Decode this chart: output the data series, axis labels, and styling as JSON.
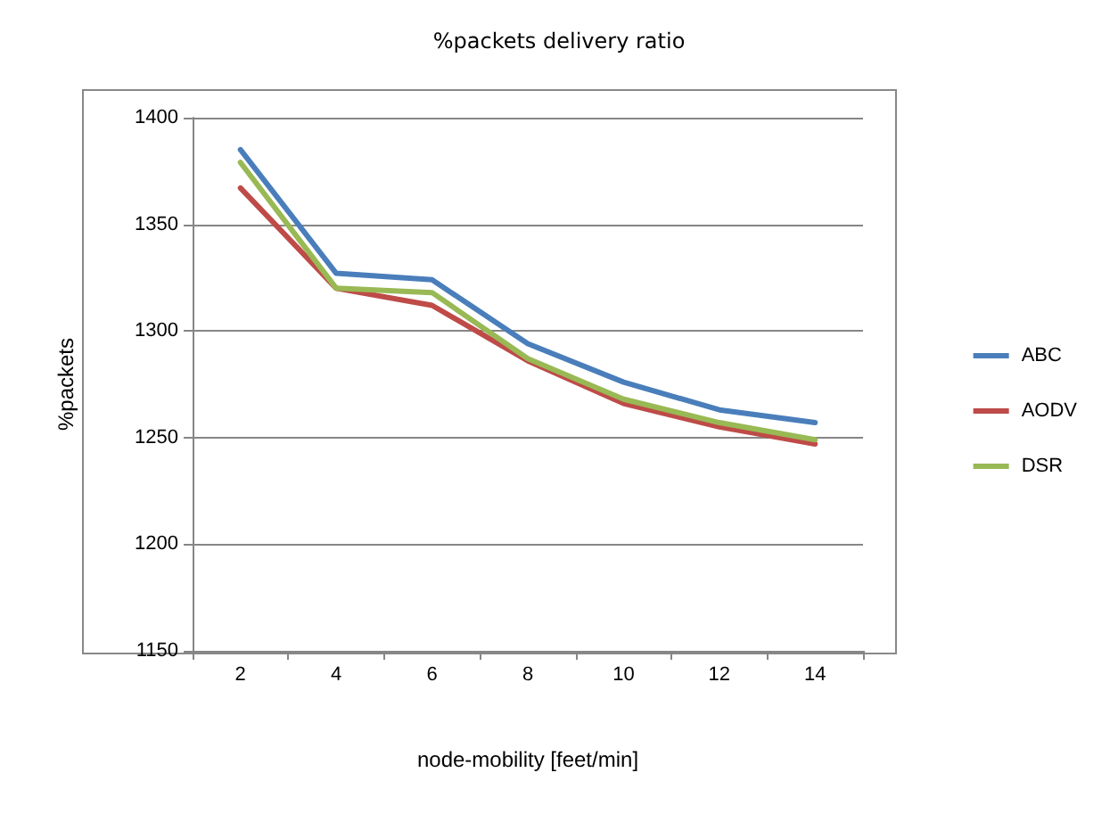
{
  "chart_data": {
    "type": "line",
    "title": "%packets delivery ratio",
    "xlabel": "node-mobility [feet/min]",
    "ylabel": "%packets",
    "categories": [
      "2",
      "4",
      "6",
      "8",
      "10",
      "12",
      "14"
    ],
    "series": [
      {
        "name": "ABC",
        "color": "#4a7ebb",
        "values": [
          1385,
          1327,
          1324,
          1294,
          1276,
          1263,
          1257
        ]
      },
      {
        "name": "AODV",
        "color": "#be4b48",
        "values": [
          1367,
          1320,
          1312,
          1286,
          1266,
          1255,
          1247
        ]
      },
      {
        "name": "DSR",
        "color": "#98b954",
        "values": [
          1379,
          1320,
          1318,
          1287,
          1268,
          1257,
          1249
        ]
      }
    ],
    "ylim": [
      1150,
      1400
    ],
    "yticks": [
      1150,
      1200,
      1250,
      1300,
      1350,
      1400
    ],
    "grid": "y",
    "legend": "right",
    "marker": "none",
    "line_style": "solid"
  }
}
